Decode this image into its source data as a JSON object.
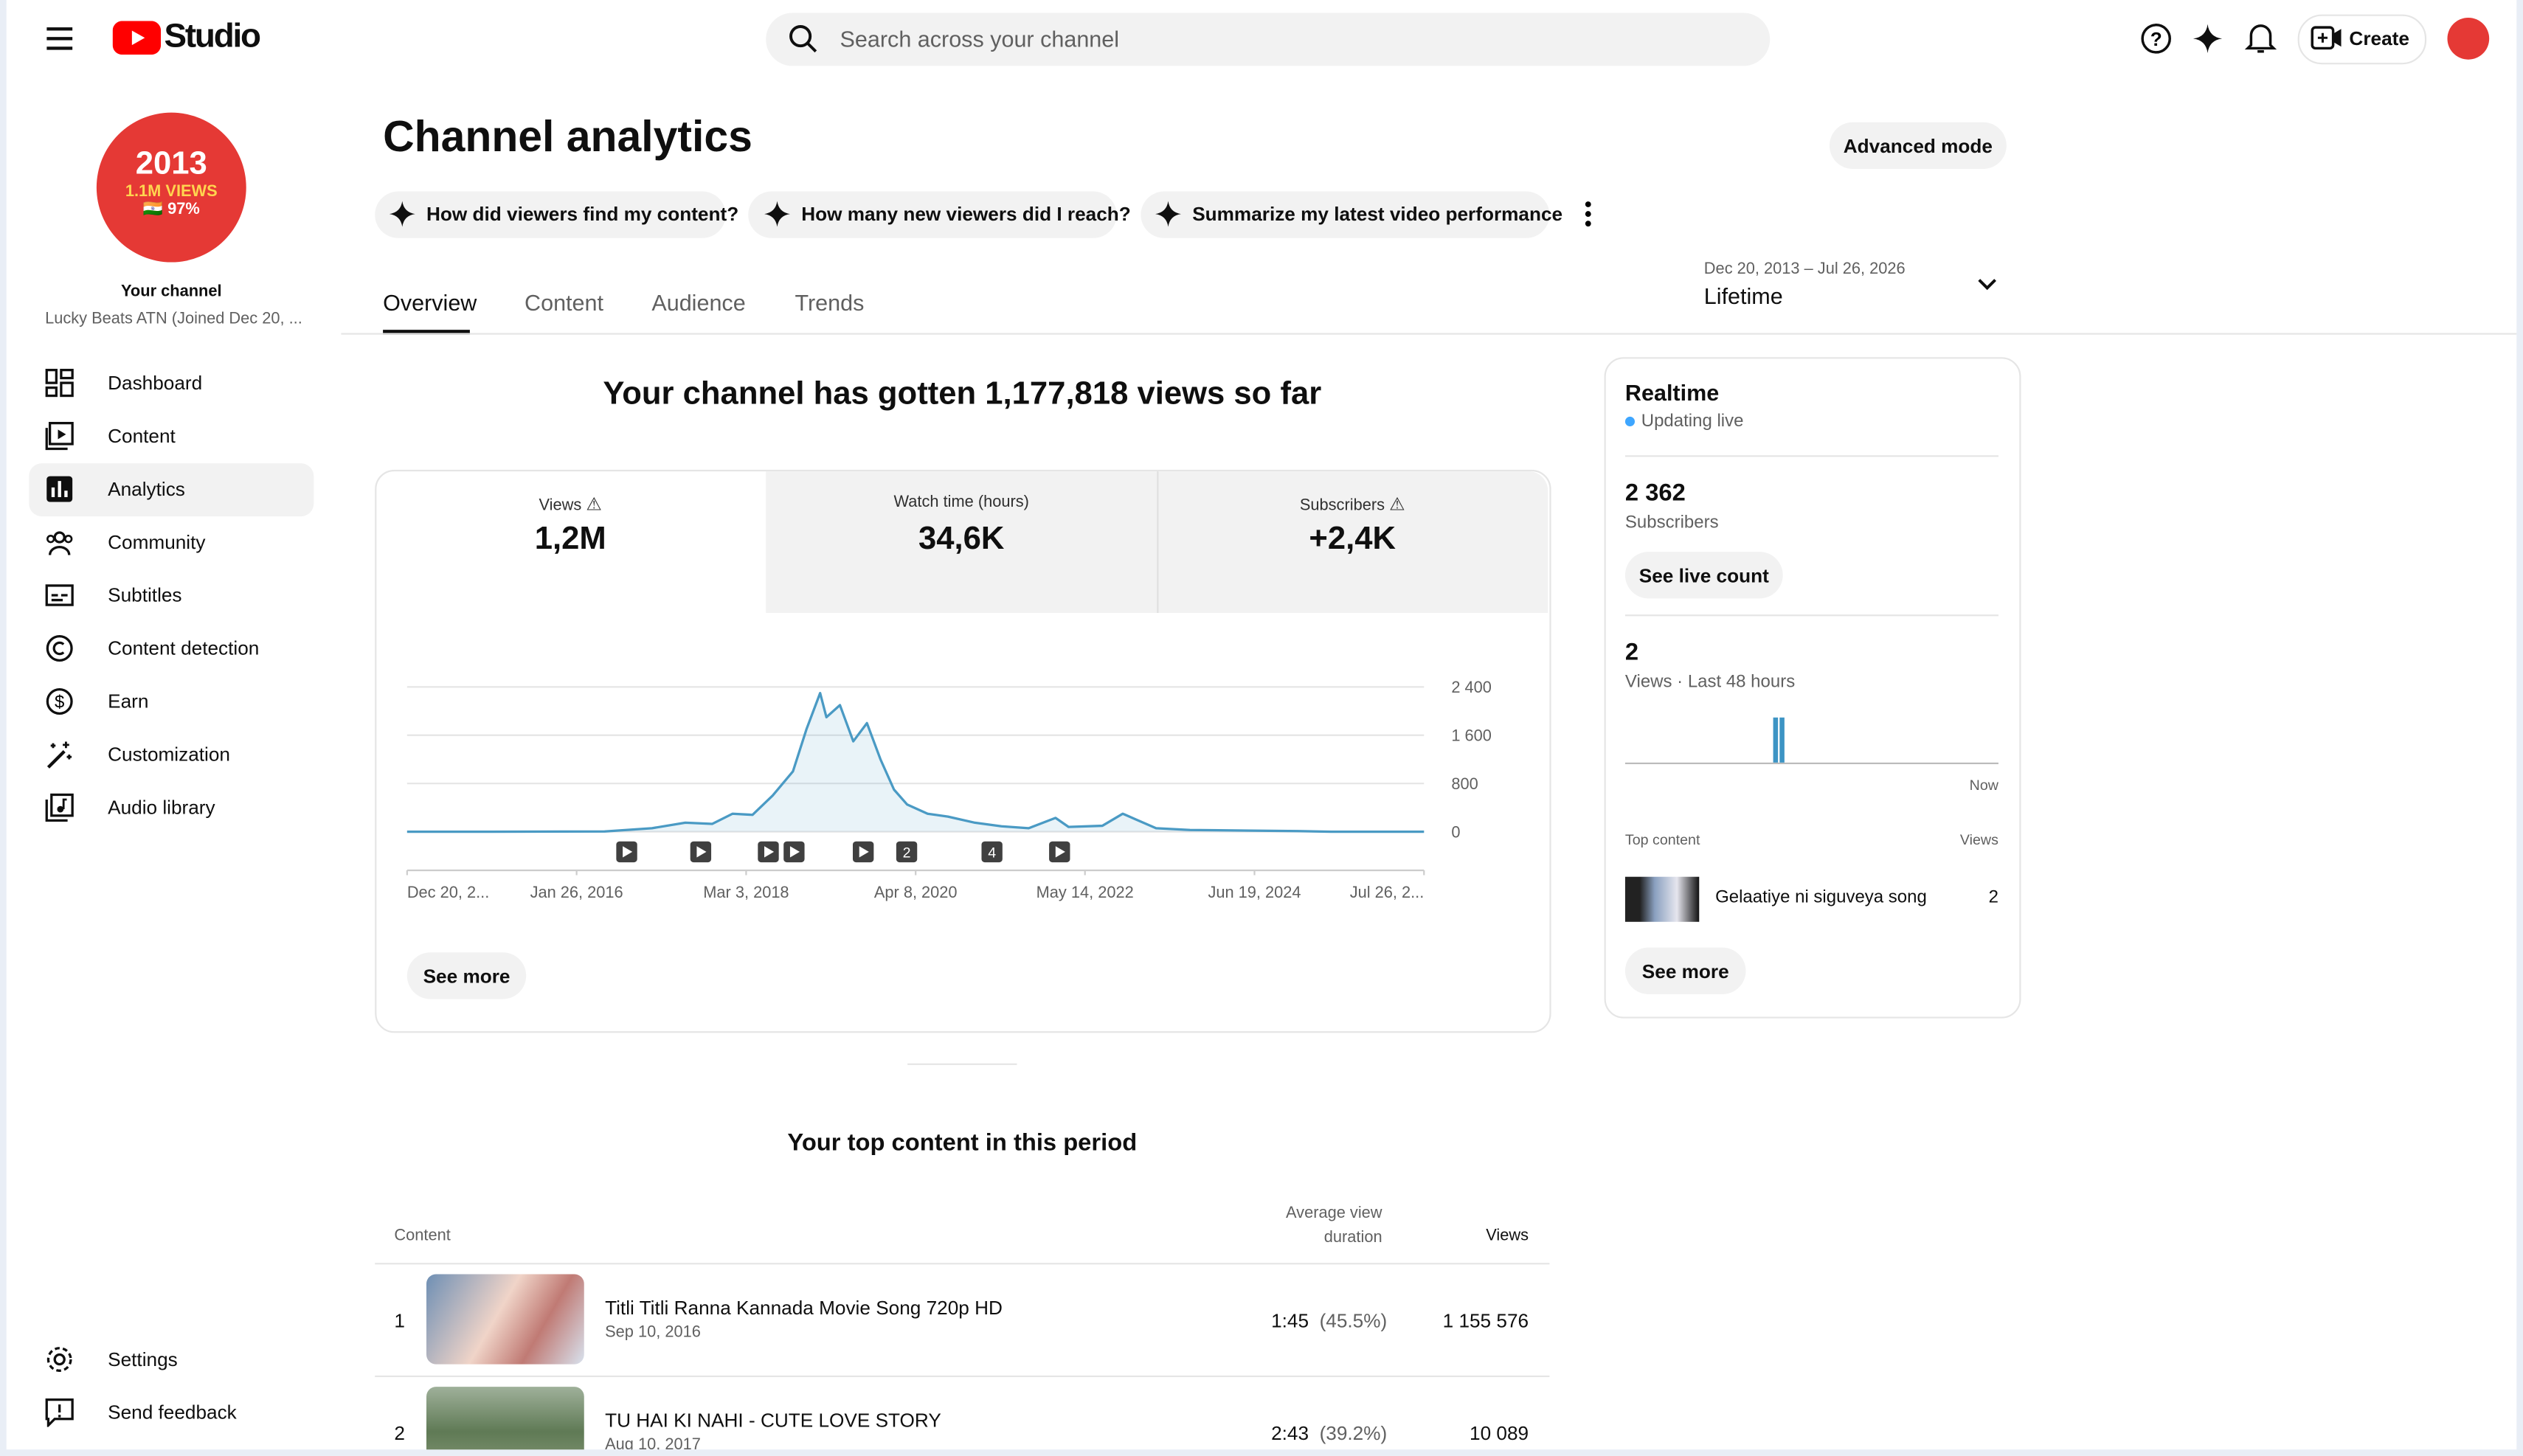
{
  "header": {
    "logo": "Studio",
    "search_placeholder": "Search across your channel",
    "create": "Create"
  },
  "sidebar": {
    "badge": [
      "2013",
      "1.1M VIEWS",
      "🇮🇳 97%"
    ],
    "your_channel": "Your channel",
    "channel_name": "Lucky Beats ATN (Joined Dec 20, ...",
    "nav": [
      "Dashboard",
      "Content",
      "Analytics",
      "Community",
      "Subtitles",
      "Content detection",
      "Earn",
      "Customization",
      "Audio library"
    ],
    "bottom": [
      "Settings",
      "Send feedback"
    ]
  },
  "main": {
    "title": "Channel analytics",
    "advanced_mode": "Advanced mode",
    "prompts": [
      "How did viewers find my content?",
      "How many new viewers did I reach?",
      "Summarize my latest video performance"
    ],
    "tabs": [
      "Overview",
      "Content",
      "Audience",
      "Trends"
    ],
    "date_range": "Dec 20, 2013 – Jul 26, 2026",
    "period": "Lifetime",
    "headline": "Your channel has gotten 1,177,818 views so far",
    "metrics": [
      {
        "label": "Views",
        "value": "1,2M"
      },
      {
        "label": "Watch time (hours)",
        "value": "34,6K"
      },
      {
        "label": "Subscribers",
        "value": "+2,4K"
      }
    ],
    "see_more": "See more",
    "top_content": {
      "title": "Your top content in this period",
      "headers": [
        "Content",
        "Average view duration",
        "Views"
      ],
      "rows": [
        {
          "rank": "1",
          "title": "Titli Titli Ranna Kannada Movie Song 720p HD",
          "date": "Sep 10, 2016",
          "duration": "1:45",
          "percent": "(45.5%)",
          "views": "1 155 576"
        },
        {
          "rank": "2",
          "title": "TU HAI KI NAHI - CUTE LOVE STORY",
          "date": "Aug 10, 2017",
          "duration": "2:43",
          "percent": "(39.2%)",
          "views": "10 089"
        }
      ]
    }
  },
  "realtime": {
    "title": "Realtime",
    "status": "Updating live",
    "subscribers": "2 362",
    "subscribers_label": "Subscribers",
    "live_count": "See live count",
    "views": "2",
    "views_label": "Views · Last 48 hours",
    "now": "Now",
    "top_content": "Top content",
    "views_header": "Views",
    "item": "Gelaatiye ni siguveya song",
    "item_views": "2",
    "see_more": "See more"
  },
  "chart_data": {
    "type": "line",
    "color": "#4a9ac4",
    "x": [
      "2013-12-20",
      "2015-01-01",
      "2016-06-01",
      "2017-01-01",
      "2017-06-01",
      "2017-10-01",
      "2018-01-01",
      "2018-04-01",
      "2018-07-01",
      "2018-10-01",
      "2018-12-01",
      "2019-02-01",
      "2019-03-01",
      "2019-05-01",
      "2019-07-01",
      "2019-09-01",
      "2019-11-01",
      "2020-01-01",
      "2020-03-01",
      "2020-06-01",
      "2020-09-01",
      "2021-01-01",
      "2021-05-01",
      "2021-09-01",
      "2022-01-01",
      "2022-03-01",
      "2022-08-01",
      "2022-11-01",
      "2023-01-01",
      "2023-04-01",
      "2023-09-01",
      "2024-06-01",
      "2025-01-01",
      "2025-06-01",
      "2026-07-26"
    ],
    "values": [
      0,
      0,
      5,
      60,
      150,
      130,
      300,
      280,
      600,
      1000,
      1700,
      2300,
      1900,
      2100,
      1500,
      1800,
      1200,
      700,
      450,
      300,
      250,
      150,
      90,
      60,
      230,
      80,
      100,
      300,
      200,
      60,
      30,
      20,
      10,
      0,
      0
    ],
    "xlim": [
      "2013-12-20",
      "2026-07-26"
    ],
    "xticks": [
      {
        "value": "2013-12-20",
        "label": "Dec 20, 2..."
      },
      {
        "value": "2016-01-26",
        "label": "Jan 26, 2016"
      },
      {
        "value": "2018-03-03",
        "label": "Mar 3, 2018"
      },
      {
        "value": "2020-04-08",
        "label": "Apr 8, 2020"
      },
      {
        "value": "2022-05-14",
        "label": "May 14, 2022"
      },
      {
        "value": "2024-06-19",
        "label": "Jun 19, 2024"
      },
      {
        "value": "2026-07-26",
        "label": "Jul 26, 2..."
      }
    ],
    "ylim": [
      0,
      2400
    ],
    "yticks": [
      0,
      800,
      {
        "value": 1600,
        "label": "1 600"
      },
      {
        "value": 2400,
        "label": "2 400"
      }
    ],
    "grid": true,
    "event_labels": [
      "2",
      "4"
    ]
  }
}
